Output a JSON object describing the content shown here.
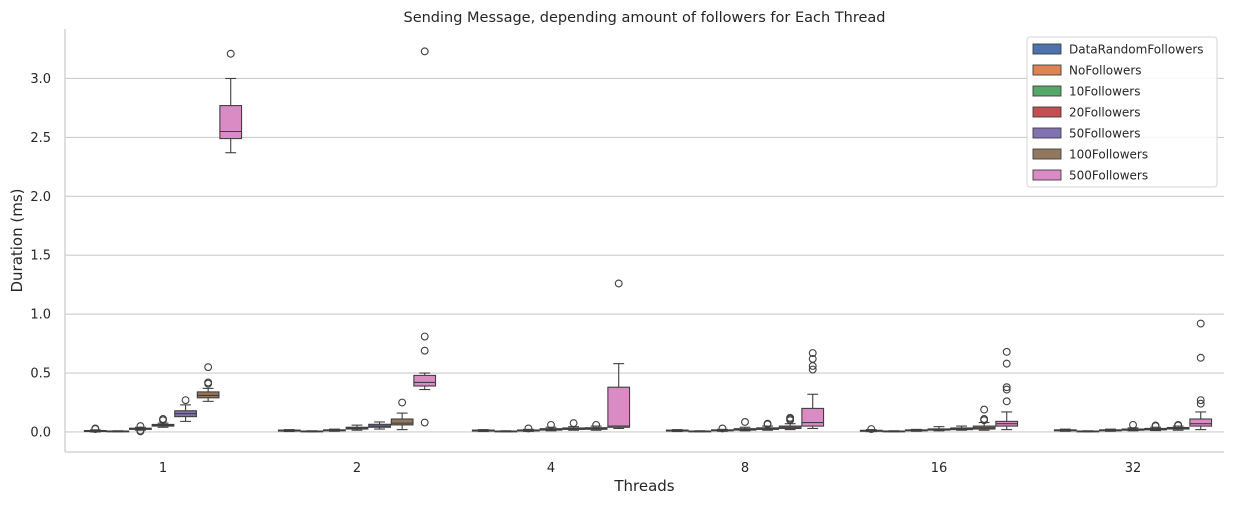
{
  "chart_data": {
    "type": "box",
    "title": "Sending Message, depending amount of followers for Each Thread",
    "xlabel": "Threads",
    "ylabel": "Duration (ms)",
    "categories": [
      "1",
      "2",
      "4",
      "8",
      "16",
      "32"
    ],
    "ylim": [
      -0.17,
      3.42
    ],
    "yticks": [
      0.0,
      0.5,
      1.0,
      1.5,
      2.0,
      2.5,
      3.0
    ],
    "ytick_labels": [
      "0.0",
      "0.5",
      "1.0",
      "1.5",
      "2.0",
      "2.5",
      "3.0"
    ],
    "grid": "horizontal",
    "legend_position": "top-right",
    "series": [
      {
        "name": "DataRandomFollowers",
        "color": "#4c72b0",
        "boxes": [
          {
            "whislo": 0.0,
            "q1": 0.004,
            "med": 0.008,
            "q3": 0.012,
            "whishi": 0.018,
            "fliers": [
              0.03,
              0.025
            ]
          },
          {
            "whislo": 0.004,
            "q1": 0.008,
            "med": 0.012,
            "q3": 0.016,
            "whishi": 0.02,
            "fliers": []
          },
          {
            "whislo": 0.004,
            "q1": 0.008,
            "med": 0.012,
            "q3": 0.016,
            "whishi": 0.02,
            "fliers": []
          },
          {
            "whislo": 0.004,
            "q1": 0.008,
            "med": 0.012,
            "q3": 0.016,
            "whishi": 0.02,
            "fliers": []
          },
          {
            "whislo": 0.003,
            "q1": 0.006,
            "med": 0.01,
            "q3": 0.014,
            "whishi": 0.02,
            "fliers": [
              0.025
            ]
          },
          {
            "whislo": 0.006,
            "q1": 0.01,
            "med": 0.014,
            "q3": 0.018,
            "whishi": 0.024,
            "fliers": []
          }
        ]
      },
      {
        "name": "NoFollowers",
        "color": "#dd8452",
        "boxes": [
          {
            "whislo": 0.002,
            "q1": 0.004,
            "med": 0.006,
            "q3": 0.008,
            "whishi": 0.01,
            "fliers": []
          },
          {
            "whislo": 0.002,
            "q1": 0.004,
            "med": 0.006,
            "q3": 0.008,
            "whishi": 0.01,
            "fliers": []
          },
          {
            "whislo": 0.002,
            "q1": 0.004,
            "med": 0.006,
            "q3": 0.008,
            "whishi": 0.01,
            "fliers": []
          },
          {
            "whislo": 0.002,
            "q1": 0.004,
            "med": 0.006,
            "q3": 0.008,
            "whishi": 0.01,
            "fliers": []
          },
          {
            "whislo": 0.002,
            "q1": 0.004,
            "med": 0.006,
            "q3": 0.008,
            "whishi": 0.01,
            "fliers": []
          },
          {
            "whislo": 0.002,
            "q1": 0.004,
            "med": 0.006,
            "q3": 0.008,
            "whishi": 0.01,
            "fliers": []
          }
        ]
      },
      {
        "name": "10Followers",
        "color": "#55a868",
        "boxes": [
          {
            "whislo": 0.015,
            "q1": 0.022,
            "med": 0.027,
            "q3": 0.032,
            "whishi": 0.04,
            "fliers": [
              0.05,
              0.012,
              0.005
            ]
          },
          {
            "whislo": 0.006,
            "q1": 0.01,
            "med": 0.014,
            "q3": 0.018,
            "whishi": 0.024,
            "fliers": []
          },
          {
            "whislo": 0.005,
            "q1": 0.009,
            "med": 0.013,
            "q3": 0.017,
            "whishi": 0.022,
            "fliers": [
              0.03
            ]
          },
          {
            "whislo": 0.006,
            "q1": 0.01,
            "med": 0.014,
            "q3": 0.018,
            "whishi": 0.022,
            "fliers": [
              0.03
            ]
          },
          {
            "whislo": 0.006,
            "q1": 0.01,
            "med": 0.014,
            "q3": 0.018,
            "whishi": 0.022,
            "fliers": []
          },
          {
            "whislo": 0.006,
            "q1": 0.01,
            "med": 0.014,
            "q3": 0.018,
            "whishi": 0.024,
            "fliers": []
          }
        ]
      },
      {
        "name": "20Followers",
        "color": "#c44e52",
        "boxes": [
          {
            "whislo": 0.04,
            "q1": 0.05,
            "med": 0.057,
            "q3": 0.064,
            "whishi": 0.075,
            "fliers": [
              0.1,
              0.11
            ]
          },
          {
            "whislo": 0.015,
            "q1": 0.025,
            "med": 0.032,
            "q3": 0.04,
            "whishi": 0.058,
            "fliers": []
          },
          {
            "whislo": 0.01,
            "q1": 0.016,
            "med": 0.022,
            "q3": 0.028,
            "whishi": 0.04,
            "fliers": [
              0.06
            ]
          },
          {
            "whislo": 0.01,
            "q1": 0.016,
            "med": 0.022,
            "q3": 0.028,
            "whishi": 0.04,
            "fliers": [
              0.085
            ]
          },
          {
            "whislo": 0.01,
            "q1": 0.016,
            "med": 0.02,
            "q3": 0.026,
            "whishi": 0.045,
            "fliers": []
          },
          {
            "whislo": 0.01,
            "q1": 0.015,
            "med": 0.02,
            "q3": 0.025,
            "whishi": 0.035,
            "fliers": [
              0.06
            ]
          }
        ]
      },
      {
        "name": "50Followers",
        "color": "#8172b3",
        "boxes": [
          {
            "whislo": 0.09,
            "q1": 0.13,
            "med": 0.155,
            "q3": 0.18,
            "whishi": 0.23,
            "fliers": [
              0.27
            ]
          },
          {
            "whislo": 0.025,
            "q1": 0.04,
            "med": 0.05,
            "q3": 0.065,
            "whishi": 0.085,
            "fliers": []
          },
          {
            "whislo": 0.015,
            "q1": 0.022,
            "med": 0.028,
            "q3": 0.034,
            "whishi": 0.045,
            "fliers": [
              0.075
            ]
          },
          {
            "whislo": 0.015,
            "q1": 0.022,
            "med": 0.028,
            "q3": 0.035,
            "whishi": 0.05,
            "fliers": [
              0.065,
              0.07
            ]
          },
          {
            "whislo": 0.015,
            "q1": 0.02,
            "med": 0.027,
            "q3": 0.034,
            "whishi": 0.05,
            "fliers": []
          },
          {
            "whislo": 0.012,
            "q1": 0.018,
            "med": 0.024,
            "q3": 0.03,
            "whishi": 0.04,
            "fliers": [
              0.05,
              0.055
            ]
          }
        ]
      },
      {
        "name": "100Followers",
        "color": "#937860",
        "boxes": [
          {
            "whislo": 0.26,
            "q1": 0.29,
            "med": 0.31,
            "q3": 0.34,
            "whishi": 0.37,
            "fliers": [
              0.41,
              0.42,
              0.55
            ]
          },
          {
            "whislo": 0.02,
            "q1": 0.06,
            "med": 0.075,
            "q3": 0.11,
            "whishi": 0.16,
            "fliers": [
              0.25
            ]
          },
          {
            "whislo": 0.015,
            "q1": 0.023,
            "med": 0.029,
            "q3": 0.036,
            "whishi": 0.05,
            "fliers": [
              0.06
            ]
          },
          {
            "whislo": 0.02,
            "q1": 0.03,
            "med": 0.04,
            "q3": 0.05,
            "whishi": 0.07,
            "fliers": [
              0.1,
              0.12,
              0.11
            ]
          },
          {
            "whislo": 0.015,
            "q1": 0.025,
            "med": 0.035,
            "q3": 0.05,
            "whishi": 0.08,
            "fliers": [
              0.1,
              0.11,
              0.19
            ]
          },
          {
            "whislo": 0.015,
            "q1": 0.025,
            "med": 0.03,
            "q3": 0.038,
            "whishi": 0.05,
            "fliers": [
              0.055,
              0.06
            ]
          }
        ]
      },
      {
        "name": "500Followers",
        "color": "#da8bc3",
        "boxes": [
          {
            "whislo": 2.37,
            "q1": 2.49,
            "med": 2.55,
            "q3": 2.77,
            "whishi": 3.0,
            "fliers": [
              3.21
            ]
          },
          {
            "whislo": 0.36,
            "q1": 0.39,
            "med": 0.42,
            "q3": 0.48,
            "whishi": 0.5,
            "fliers": [
              0.08,
              0.69,
              0.81,
              3.23
            ]
          },
          {
            "whislo": 0.03,
            "q1": 0.04,
            "med": 0.05,
            "q3": 0.38,
            "whishi": 0.58,
            "fliers": [
              1.26
            ]
          },
          {
            "whislo": 0.03,
            "q1": 0.05,
            "med": 0.08,
            "q3": 0.2,
            "whishi": 0.32,
            "fliers": [
              0.53,
              0.56,
              0.62,
              0.67
            ]
          },
          {
            "whislo": 0.02,
            "q1": 0.05,
            "med": 0.07,
            "q3": 0.09,
            "whishi": 0.17,
            "fliers": [
              0.26,
              0.36,
              0.38,
              0.58,
              0.68
            ]
          },
          {
            "whislo": 0.02,
            "q1": 0.05,
            "med": 0.07,
            "q3": 0.11,
            "whishi": 0.17,
            "fliers": [
              0.24,
              0.27,
              0.63,
              0.92
            ]
          }
        ]
      }
    ]
  }
}
